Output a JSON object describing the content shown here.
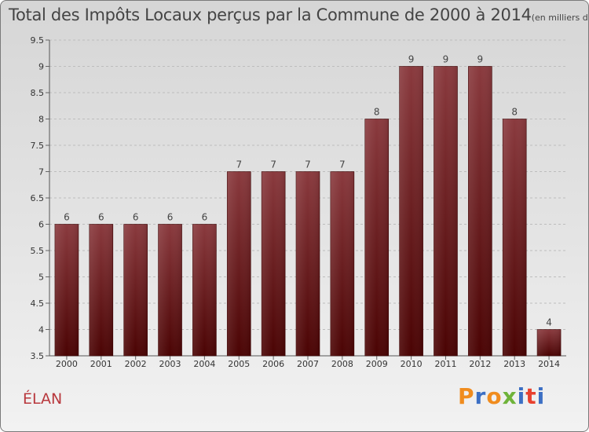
{
  "header": {
    "title": "Total des Impôts Locaux perçus par la Commune de 2000 à 2014",
    "unit": "(en milliers d'€)"
  },
  "footer": {
    "commune": "ÉLAN",
    "logo_text": "Proxiti"
  },
  "colors": {
    "bar_top": "#8a3a3e",
    "bar_bottom": "#4a0303",
    "title": "#444444",
    "commune": "#b8383d",
    "logo": [
      "#f08c1e",
      "#3c6fc4",
      "#f08c1e",
      "#6fb33a",
      "#3c6fc4",
      "#e8412f",
      "#3c6fc4"
    ]
  },
  "chart_data": {
    "type": "bar",
    "title": "Total des Impôts Locaux perçus par la Commune de 2000 à 2014",
    "xlabel": "",
    "ylabel": "",
    "categories": [
      "2000",
      "2001",
      "2002",
      "2003",
      "2004",
      "2005",
      "2006",
      "2007",
      "2008",
      "2009",
      "2010",
      "2011",
      "2012",
      "2013",
      "2014"
    ],
    "values": [
      6,
      6,
      6,
      6,
      6,
      7,
      7,
      7,
      7,
      8,
      9,
      9,
      9,
      8,
      4
    ],
    "ylim": [
      3.5,
      9.5
    ],
    "yticks": [
      "3.5",
      "4",
      "4.5",
      "5",
      "5.5",
      "6",
      "6.5",
      "7",
      "7.5",
      "8",
      "8.5",
      "9",
      "9.5"
    ],
    "grid": true,
    "legend": "none"
  }
}
